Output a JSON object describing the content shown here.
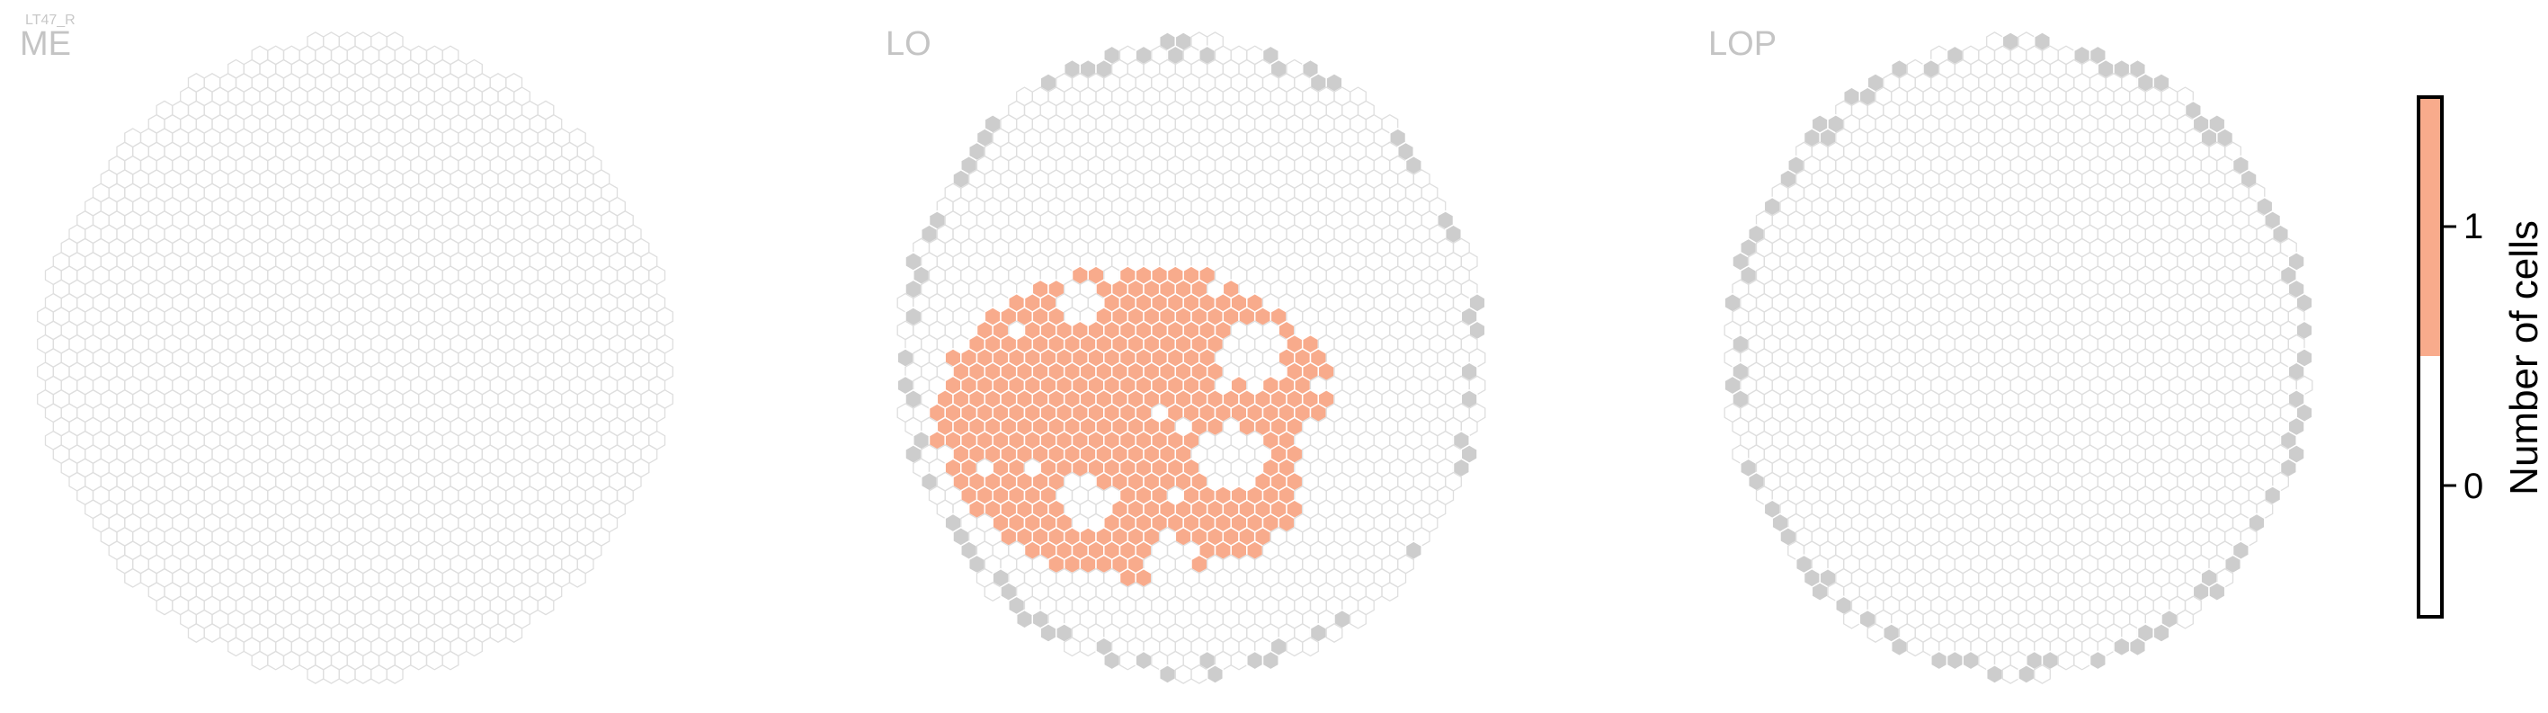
{
  "cell_type_label": "LT47_R",
  "panels": [
    "ME",
    "LO",
    "LOP"
  ],
  "colorbar": {
    "label": "Number of cells",
    "ticks": [
      "0",
      "1"
    ],
    "colors": {
      "zero": "#ffffff",
      "one": "#f8ab8c"
    }
  },
  "colors": {
    "empty_hex_stroke": "#dedede",
    "outside_hex_fill": "#cdcdcd",
    "filled_hex": "#f8ab8c"
  },
  "chart_data": {
    "type": "heatmap",
    "description": "hexagonal column maps; each hex is a retinotopic column",
    "value_range": [
      0,
      1
    ],
    "panels": [
      {
        "name": "ME",
        "count_1_columns": 0
      },
      {
        "name": "LO",
        "count_1_columns": "patch of innervated columns (value 1) in lower-left region"
      },
      {
        "name": "LOP",
        "count_1_columns": 0
      }
    ]
  }
}
